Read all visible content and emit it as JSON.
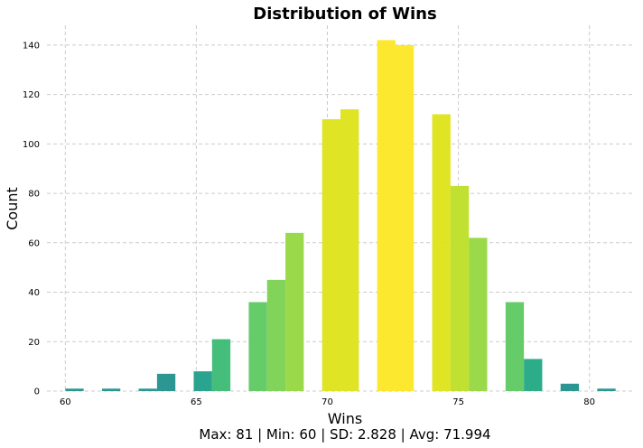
{
  "chart_data": {
    "type": "bar",
    "title": "Distribution of Wins",
    "xlabel": "Wins",
    "ylabel": "Count",
    "stats_caption": "Max: 81 | Min: 60 | SD: 2.828 | Avg: 71.994",
    "xlim": [
      59.3,
      81.7
    ],
    "ylim": [
      0,
      148
    ],
    "x_ticks": [
      60,
      65,
      70,
      75,
      80
    ],
    "y_ticks": [
      0,
      20,
      40,
      60,
      80,
      100,
      120,
      140
    ],
    "grid": true,
    "bin_width": 0.7,
    "bins": [
      {
        "x": 60.35,
        "count": 1,
        "color": "#21918c"
      },
      {
        "x": 61.75,
        "count": 1,
        "color": "#21918c"
      },
      {
        "x": 63.15,
        "count": 1,
        "color": "#21918c"
      },
      {
        "x": 63.85,
        "count": 7,
        "color": "#21918c"
      },
      {
        "x": 65.25,
        "count": 8,
        "color": "#1f9e89"
      },
      {
        "x": 65.95,
        "count": 21,
        "color": "#3bbb75"
      },
      {
        "x": 67.35,
        "count": 36,
        "color": "#5ec962"
      },
      {
        "x": 68.05,
        "count": 45,
        "color": "#7ad151"
      },
      {
        "x": 68.75,
        "count": 64,
        "color": "#95d840"
      },
      {
        "x": 70.15,
        "count": 110,
        "color": "#dde318"
      },
      {
        "x": 70.85,
        "count": 114,
        "color": "#dde318"
      },
      {
        "x": 72.25,
        "count": 142,
        "color": "#fde725"
      },
      {
        "x": 72.95,
        "count": 140,
        "color": "#fde725"
      },
      {
        "x": 74.35,
        "count": 112,
        "color": "#dde318"
      },
      {
        "x": 75.05,
        "count": 83,
        "color": "#bddf26"
      },
      {
        "x": 75.75,
        "count": 62,
        "color": "#95d840"
      },
      {
        "x": 77.15,
        "count": 36,
        "color": "#5ec962"
      },
      {
        "x": 77.85,
        "count": 13,
        "color": "#22a884"
      },
      {
        "x": 79.25,
        "count": 3,
        "color": "#21918c"
      },
      {
        "x": 80.65,
        "count": 1,
        "color": "#21918c"
      }
    ]
  }
}
